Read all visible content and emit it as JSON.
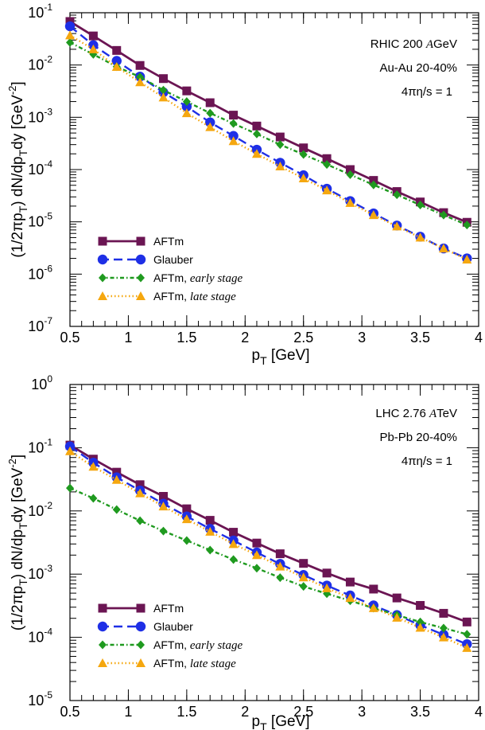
{
  "chart_data": [
    {
      "type": "line",
      "xlabel": "p",
      "xlabel_sub": "T",
      "xunit": "[GeV]",
      "ylabel": "(1/2πp",
      "ylabel_sub": "T",
      "ylabel_mid": ") dN/dp",
      "ylabel_sub2": "T",
      "ylabel_end": "dy  [GeV",
      "ylabel_sup": "-2",
      "ylabel_close": "]",
      "xlim": [
        0.5,
        4.0
      ],
      "ylim_log10": [
        -7,
        -1
      ],
      "yscale": "log",
      "xticks": [
        "0.5",
        "1",
        "1.5",
        "2",
        "2.5",
        "3",
        "3.5",
        "4"
      ],
      "yticks": [
        {
          "base": "10",
          "exp": "-7"
        },
        {
          "base": "10",
          "exp": "-6"
        },
        {
          "base": "10",
          "exp": "-5"
        },
        {
          "base": "10",
          "exp": "-4"
        },
        {
          "base": "10",
          "exp": "-3"
        },
        {
          "base": "10",
          "exp": "-2"
        },
        {
          "base": "10",
          "exp": "-1"
        }
      ],
      "annotations": [
        "RHIC 200 ",
        "A",
        "GeV",
        "Au-Au 20-40%",
        "4πη/s = 1"
      ],
      "legend_position": "bottom-left",
      "x": [
        0.5,
        0.7,
        0.9,
        1.1,
        1.3,
        1.5,
        1.7,
        1.9,
        2.1,
        2.3,
        2.5,
        2.7,
        2.9,
        3.1,
        3.3,
        3.5,
        3.7,
        3.9
      ],
      "series": [
        {
          "name": "AFTm",
          "name_italic": "",
          "color": "#6b1553",
          "marker": "square",
          "dash": "solid",
          "values": [
            0.068,
            0.036,
            0.019,
            0.0098,
            0.0055,
            0.0032,
            0.0019,
            0.0011,
            0.00068,
            0.00042,
            0.00026,
            0.000162,
            0.0001,
            6.2e-05,
            3.8e-05,
            2.4e-05,
            1.5e-05,
            9.8e-06
          ]
        },
        {
          "name": "Glauber",
          "name_italic": "",
          "color": "#1e2fe6",
          "marker": "circle",
          "dash": "long",
          "values": [
            0.055,
            0.024,
            0.012,
            0.006,
            0.003,
            0.0016,
            0.0008,
            0.00044,
            0.00024,
            0.000135,
            7.8e-05,
            4.3e-05,
            2.5e-05,
            1.45e-05,
            8.5e-06,
            5.2e-06,
            3.1e-06,
            2e-06
          ]
        },
        {
          "name": "AFTm, ",
          "name_italic": "early stage",
          "color": "#1f9a1f",
          "marker": "diamond",
          "dash": "dashdot",
          "values": [
            0.027,
            0.016,
            0.0093,
            0.0059,
            0.0033,
            0.002,
            0.0012,
            0.00076,
            0.00048,
            0.0003,
            0.000195,
            0.000125,
            8e-05,
            5.1e-05,
            3.3e-05,
            2.1e-05,
            1.35e-05,
            8.7e-06
          ]
        },
        {
          "name": "AFTm, ",
          "name_italic": "late stage",
          "color": "#f5a70f",
          "marker": "triangle",
          "dash": "dotted",
          "values": [
            0.037,
            0.02,
            0.0092,
            0.0047,
            0.0024,
            0.0012,
            0.00065,
            0.00035,
            0.0002,
            0.000115,
            6.8e-05,
            4e-05,
            2.3e-05,
            1.35e-05,
            8.2e-06,
            5e-06,
            3.1e-06,
            1.9e-06
          ]
        }
      ]
    },
    {
      "type": "line",
      "xlabel": "p",
      "xlabel_sub": "T",
      "xunit": "[GeV]",
      "ylabel": "(1/2πp",
      "ylabel_sub": "T",
      "ylabel_mid": ") dN/dp",
      "ylabel_sub2": "T",
      "ylabel_end": "dy  [GeV",
      "ylabel_sup": "-2",
      "ylabel_close": "]",
      "xlim": [
        0.5,
        4.0
      ],
      "ylim_log10": [
        -5,
        0
      ],
      "yscale": "log",
      "xticks": [
        "0.5",
        "1",
        "1.5",
        "2",
        "2.5",
        "3",
        "3.5",
        "4"
      ],
      "yticks": [
        {
          "base": "10",
          "exp": "-5"
        },
        {
          "base": "10",
          "exp": "-4"
        },
        {
          "base": "10",
          "exp": "-3"
        },
        {
          "base": "10",
          "exp": "-2"
        },
        {
          "base": "10",
          "exp": "-1"
        },
        {
          "base": "10",
          "exp": "0"
        }
      ],
      "annotations": [
        "LHC 2.76 ",
        "A",
        "TeV",
        "Pb-Pb 20-40%",
        "4πη/s = 1"
      ],
      "legend_position": "bottom-left",
      "x": [
        0.5,
        0.7,
        0.9,
        1.1,
        1.3,
        1.5,
        1.7,
        1.9,
        2.1,
        2.3,
        2.5,
        2.7,
        2.9,
        3.1,
        3.3,
        3.5,
        3.7,
        3.9
      ],
      "series": [
        {
          "name": "AFTm",
          "name_italic": "",
          "color": "#6b1553",
          "marker": "square",
          "dash": "solid",
          "values": [
            0.11,
            0.066,
            0.041,
            0.026,
            0.017,
            0.0108,
            0.0071,
            0.0046,
            0.0031,
            0.0021,
            0.00148,
            0.00104,
            0.00075,
            0.00058,
            0.00042,
            0.00032,
            0.00024,
            0.000175
          ]
        },
        {
          "name": "Glauber",
          "name_italic": "",
          "color": "#1e2fe6",
          "marker": "circle",
          "dash": "long",
          "values": [
            0.105,
            0.058,
            0.034,
            0.021,
            0.013,
            0.0082,
            0.0052,
            0.0034,
            0.0022,
            0.00145,
            0.00097,
            0.00066,
            0.00046,
            0.00032,
            0.000225,
            0.000156,
            0.00011,
            7.8e-05
          ]
        },
        {
          "name": "AFTm, ",
          "name_italic": "early stage",
          "color": "#1f9a1f",
          "marker": "diamond",
          "dash": "dashdot",
          "values": [
            0.023,
            0.0158,
            0.0105,
            0.007,
            0.0048,
            0.0034,
            0.0024,
            0.0017,
            0.00124,
            0.00088,
            0.00064,
            0.00049,
            0.00038,
            0.00029,
            0.000225,
            0.000175,
            0.00014,
            0.000112
          ]
        },
        {
          "name": "AFTm, ",
          "name_italic": "late stage",
          "color": "#f5a70f",
          "marker": "triangle",
          "dash": "dotted",
          "values": [
            0.088,
            0.05,
            0.031,
            0.019,
            0.0118,
            0.0074,
            0.0047,
            0.003,
            0.002,
            0.00132,
            0.00089,
            0.0006,
            0.00042,
            0.00029,
            0.000205,
            0.000142,
            0.0001,
            6.8e-05
          ]
        }
      ]
    }
  ]
}
